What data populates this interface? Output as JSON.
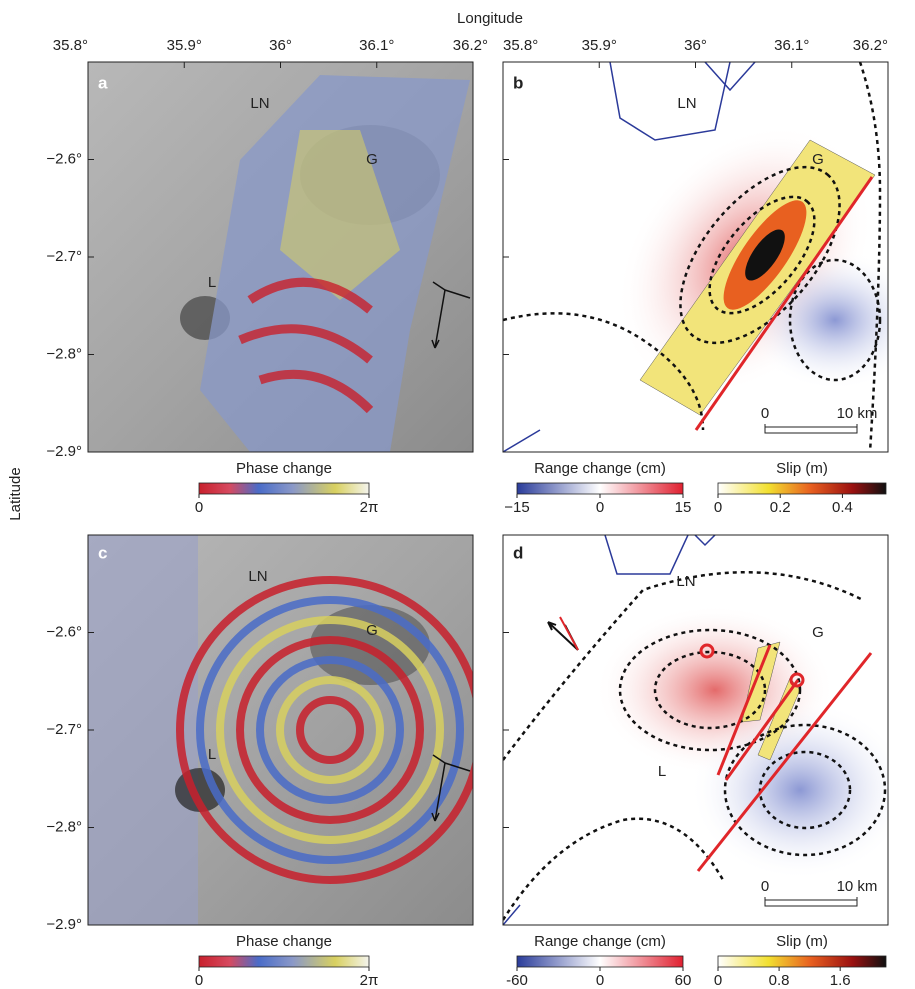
{
  "figure": {
    "x_label": "Longitude",
    "y_label": "Latitude",
    "xlim": [
      35.8,
      36.2
    ],
    "ylim": [
      -2.5,
      -2.9
    ],
    "xticks": [
      {
        "value": 35.8,
        "label": "35.8°"
      },
      {
        "value": 35.9,
        "label": "35.9°"
      },
      {
        "value": 36.0,
        "label": "36°"
      },
      {
        "value": 36.1,
        "label": "36.1°"
      },
      {
        "value": 36.2,
        "label": "36.2°"
      }
    ],
    "yticks": [
      {
        "value": -2.6,
        "label": "−2.6°"
      },
      {
        "value": -2.7,
        "label": "−2.7°"
      },
      {
        "value": -2.8,
        "label": "−2.8°"
      },
      {
        "value": -2.9,
        "label": "−2.9°"
      }
    ],
    "panels": [
      {
        "label": "a",
        "places": [
          "LN",
          "G",
          "L"
        ],
        "colorbars": [
          {
            "title": "Phase change",
            "lim": [
              0,
              6.283
            ],
            "ticks": [
              0,
              {
                "value": 6.283,
                "label": "2π"
              }
            ]
          }
        ]
      },
      {
        "label": "b",
        "places": [
          "LN",
          "G"
        ],
        "scale_bar": {
          "lim": [
            0,
            10
          ],
          "ticks": [
            0,
            {
              "value": 10,
              "label": "10 km"
            }
          ]
        },
        "colorbars": [
          {
            "title": "Range change (cm)",
            "lim": [
              -15,
              15
            ],
            "ticks": [
              {
                "value": -15,
                "label": "−15"
              },
              0,
              15
            ]
          },
          {
            "title": "Slip (m)",
            "lim": [
              0,
              0.54
            ],
            "ticks": [
              0,
              0.2,
              0.4
            ]
          }
        ]
      },
      {
        "label": "c",
        "places": [
          "LN",
          "G",
          "L"
        ],
        "colorbars": [
          {
            "title": "Phase change",
            "lim": [
              0,
              6.283
            ],
            "ticks": [
              0,
              {
                "value": 6.283,
                "label": "2π"
              }
            ]
          }
        ]
      },
      {
        "label": "d",
        "places": [
          "LN",
          "G",
          "L"
        ],
        "scale_bar": {
          "lim": [
            0,
            10
          ],
          "ticks": [
            0,
            {
              "value": 10,
              "label": "10 km"
            }
          ]
        },
        "colorbars": [
          {
            "title": "Range change (cm)",
            "lim": [
              -60,
              60
            ],
            "ticks": [
              -60,
              0,
              60
            ]
          },
          {
            "title": "Slip (m)",
            "lim": [
              0,
              2.2
            ],
            "ticks": [
              0,
              0.8,
              1.6
            ]
          }
        ]
      }
    ]
  }
}
